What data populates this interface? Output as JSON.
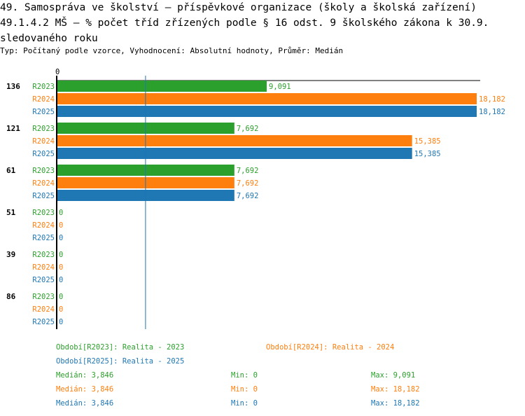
{
  "header": {
    "title_line1": "49. Samospráva ve školství – příspěvkové organizace (školy a školská zařízení)",
    "title_line2": "49.1.4.2 MŠ – % počet tříd zřízených podle § 16 odst. 9 školského zákona k 30.9.",
    "title_line3": "sledovaného roku",
    "subtitle": "Typ: Počítaný podle vzorce, Vyhodnocení: Absolutní hodnoty, Průměr: Medián"
  },
  "colors": {
    "R2023": "#2ca02c",
    "R2024": "#ff7f0e",
    "R2025": "#1f77b4"
  },
  "chart_data": {
    "type": "bar",
    "orientation": "horizontal",
    "axis_zero_label": "0",
    "xlim": [
      0,
      18.182
    ],
    "median_line": 3.846,
    "categories": [
      "136",
      "121",
      "61",
      "51",
      "39",
      "86"
    ],
    "series": [
      {
        "name": "R2023",
        "values": [
          9.091,
          7.692,
          7.692,
          0,
          0,
          0
        ],
        "labels": [
          "9,091",
          "7,692",
          "7,692",
          "0",
          "0",
          "0"
        ]
      },
      {
        "name": "R2024",
        "values": [
          18.182,
          15.385,
          7.692,
          0,
          0,
          0
        ],
        "labels": [
          "18,182",
          "15,385",
          "7,692",
          "0",
          "0",
          "0"
        ]
      },
      {
        "name": "R2025",
        "values": [
          18.182,
          15.385,
          7.692,
          0,
          0,
          0
        ],
        "labels": [
          "18,182",
          "15,385",
          "7,692",
          "0",
          "0",
          "0"
        ]
      }
    ]
  },
  "legend": {
    "r2023": "Období[R2023]: Realita - 2023",
    "r2024": "Období[R2024]: Realita - 2024",
    "r2025": "Období[R2025]: Realita - 2025"
  },
  "stats": [
    {
      "series": "R2023",
      "median": "Medián: 3,846",
      "min": "Min: 0",
      "max": "Max: 9,091"
    },
    {
      "series": "R2024",
      "median": "Medián: 3,846",
      "min": "Min: 0",
      "max": "Max: 18,182"
    },
    {
      "series": "R2025",
      "median": "Medián: 3,846",
      "min": "Min: 0",
      "max": "Max: 18,182"
    }
  ]
}
